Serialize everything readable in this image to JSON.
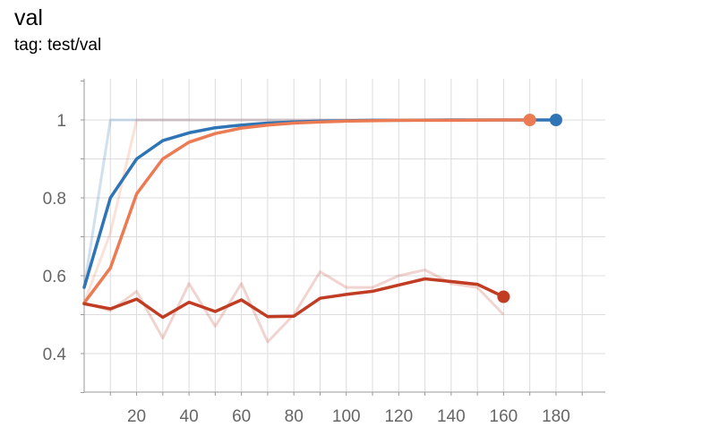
{
  "header": {
    "title": "val",
    "subtitle": "tag: test/val"
  },
  "colors": {
    "blue": "#2f74b5",
    "orange": "#ec7a52",
    "red": "#c03d24",
    "grid": "#dcdcdc"
  },
  "chart_data": {
    "type": "line",
    "title": "val",
    "subtitle": "tag: test/val",
    "xlim": [
      0,
      190
    ],
    "ylim": [
      0.3,
      1.1
    ],
    "x_ticks": [
      20,
      40,
      60,
      80,
      100,
      120,
      140,
      160,
      180
    ],
    "y_ticks": [
      0.4,
      0.6,
      0.8,
      1
    ],
    "y_tick_labels": [
      "0.4",
      "0.6",
      "0.8",
      "1"
    ],
    "grid": true,
    "series": [
      {
        "color": "#2f74b5",
        "raw": [
          [
            0,
            0.57
          ],
          [
            10,
            1.0
          ],
          [
            20,
            1.0
          ],
          [
            30,
            1.0
          ],
          [
            180,
            1.0
          ]
        ],
        "smoothed": [
          [
            0,
            0.57
          ],
          [
            10,
            0.8
          ],
          [
            20,
            0.9
          ],
          [
            30,
            0.947
          ],
          [
            40,
            0.967
          ],
          [
            50,
            0.98
          ],
          [
            60,
            0.987
          ],
          [
            70,
            0.992
          ],
          [
            80,
            0.995
          ],
          [
            90,
            0.997
          ],
          [
            100,
            0.998
          ],
          [
            110,
            0.999
          ],
          [
            120,
            0.999
          ],
          [
            140,
            1.0
          ],
          [
            160,
            1.0
          ],
          [
            180,
            1.0
          ]
        ]
      },
      {
        "color": "#ec7a52",
        "raw": [
          [
            0,
            0.53
          ],
          [
            10,
            0.71
          ],
          [
            20,
            1.0
          ],
          [
            30,
            1.0
          ],
          [
            170,
            1.0
          ]
        ],
        "smoothed": [
          [
            0,
            0.53
          ],
          [
            10,
            0.62
          ],
          [
            20,
            0.81
          ],
          [
            30,
            0.9
          ],
          [
            40,
            0.943
          ],
          [
            50,
            0.965
          ],
          [
            60,
            0.979
          ],
          [
            70,
            0.987
          ],
          [
            80,
            0.992
          ],
          [
            90,
            0.995
          ],
          [
            100,
            0.997
          ],
          [
            110,
            0.998
          ],
          [
            120,
            0.999
          ],
          [
            140,
            0.999
          ],
          [
            160,
            1.0
          ],
          [
            170,
            1.0
          ]
        ]
      },
      {
        "color": "#c03d24",
        "raw": [
          [
            0,
            0.53
          ],
          [
            10,
            0.51
          ],
          [
            20,
            0.56
          ],
          [
            30,
            0.44
          ],
          [
            40,
            0.58
          ],
          [
            50,
            0.47
          ],
          [
            60,
            0.58
          ],
          [
            70,
            0.43
          ],
          [
            80,
            0.5
          ],
          [
            90,
            0.61
          ],
          [
            100,
            0.57
          ],
          [
            110,
            0.57
          ],
          [
            120,
            0.6
          ],
          [
            130,
            0.615
          ],
          [
            140,
            0.58
          ],
          [
            150,
            0.57
          ],
          [
            160,
            0.5
          ]
        ],
        "smoothed": [
          [
            0,
            0.528
          ],
          [
            10,
            0.515
          ],
          [
            20,
            0.54
          ],
          [
            30,
            0.493
          ],
          [
            40,
            0.532
          ],
          [
            50,
            0.508
          ],
          [
            60,
            0.538
          ],
          [
            70,
            0.495
          ],
          [
            80,
            0.496
          ],
          [
            90,
            0.542
          ],
          [
            100,
            0.552
          ],
          [
            110,
            0.56
          ],
          [
            120,
            0.576
          ],
          [
            130,
            0.592
          ],
          [
            140,
            0.585
          ],
          [
            150,
            0.578
          ],
          [
            160,
            0.546
          ]
        ]
      }
    ]
  }
}
